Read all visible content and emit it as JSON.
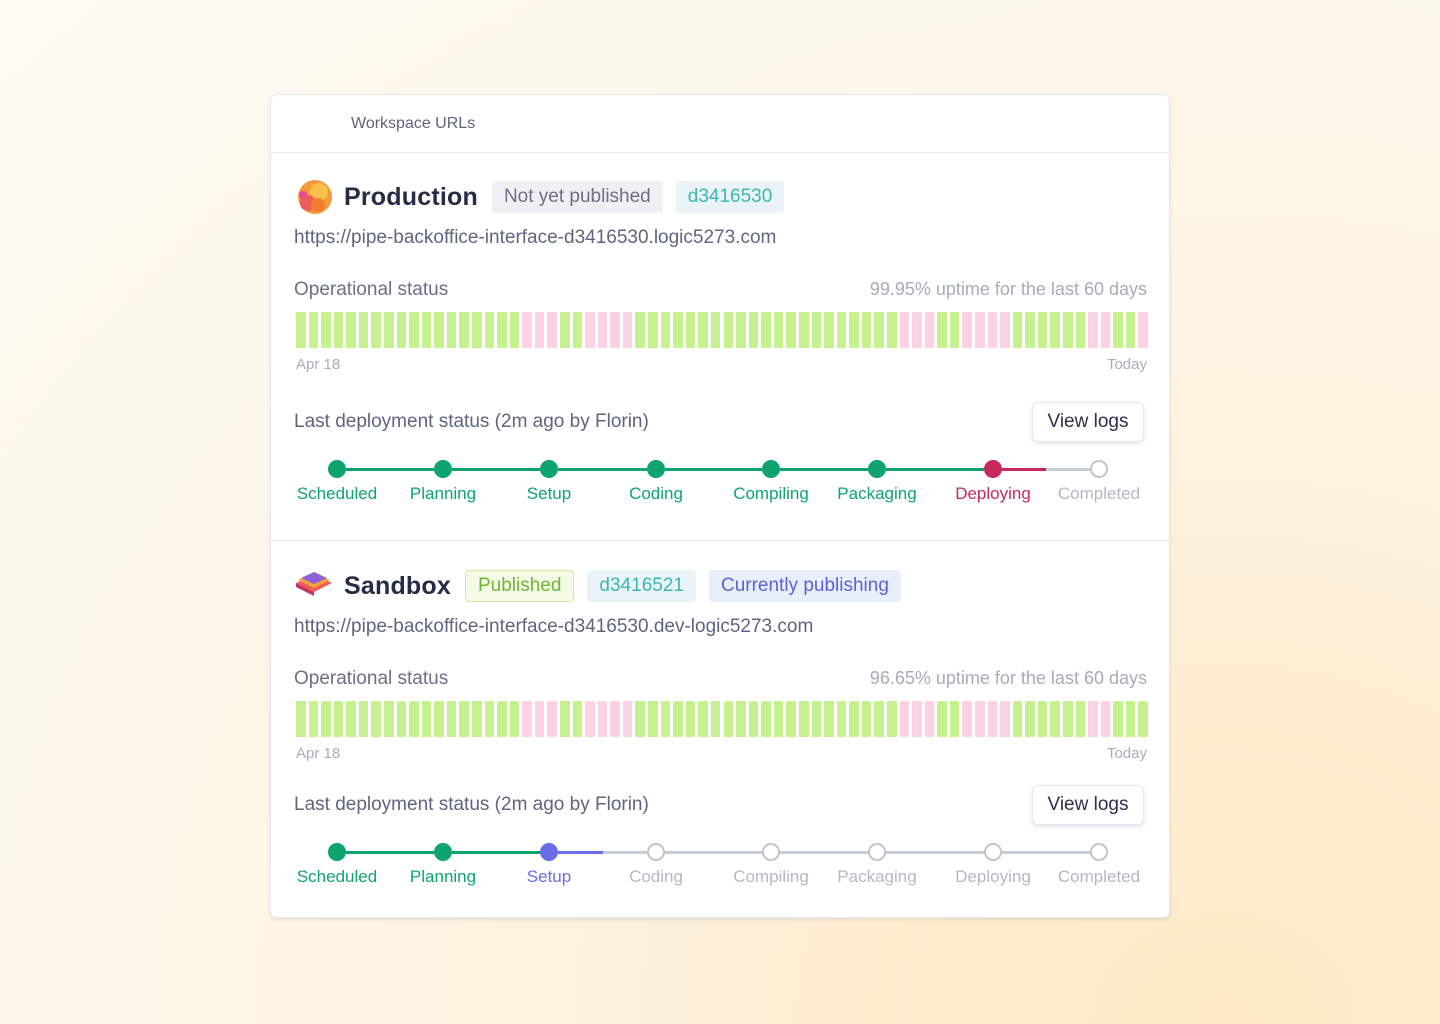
{
  "header": {
    "title": "Workspace URLs"
  },
  "colors": {
    "bar_ok": "#c7f08e",
    "bar_warn": "#fbd2e3",
    "step_done": "#0ea46d",
    "step_active_prod": "#c7285b",
    "step_active_sand": "#6d6ce8",
    "step_pending": "#b9bdcb"
  },
  "environments": [
    {
      "name": "Production",
      "icon": "production-logo-icon",
      "badges": [
        {
          "text": "Not yet published",
          "style": "gray"
        },
        {
          "text": "d3416530",
          "style": "teal"
        }
      ],
      "url": "https://pipe-backoffice-interface-d3416530.logic5273.com",
      "operational_label": "Operational status",
      "uptime_text": "99.95% uptime for the last 60 days",
      "axis_start": "Apr 18",
      "axis_end": "Today",
      "uptime_days": [
        "ok",
        "ok",
        "ok",
        "ok",
        "ok",
        "ok",
        "ok",
        "ok",
        "ok",
        "ok",
        "ok",
        "ok",
        "ok",
        "ok",
        "ok",
        "ok",
        "ok",
        "ok",
        "warn",
        "warn",
        "warn",
        "ok",
        "ok",
        "warn",
        "warn",
        "warn",
        "warn",
        "ok",
        "ok",
        "ok",
        "ok",
        "ok",
        "ok",
        "ok",
        "ok",
        "ok",
        "ok",
        "ok",
        "ok",
        "ok",
        "ok",
        "ok",
        "ok",
        "ok",
        "ok",
        "ok",
        "ok",
        "ok",
        "warn",
        "warn",
        "warn",
        "ok",
        "ok",
        "warn",
        "warn",
        "warn",
        "warn",
        "ok",
        "ok",
        "ok",
        "ok",
        "ok",
        "ok",
        "warn",
        "warn",
        "ok",
        "ok",
        "warn"
      ],
      "deployment_label": "Last deployment status (2m ago by Florin)",
      "view_logs": "View logs",
      "steps": [
        {
          "label": "Scheduled",
          "state": "done"
        },
        {
          "label": "Planning",
          "state": "done"
        },
        {
          "label": "Setup",
          "state": "done"
        },
        {
          "label": "Coding",
          "state": "done"
        },
        {
          "label": "Compiling",
          "state": "done"
        },
        {
          "label": "Packaging",
          "state": "done"
        },
        {
          "label": "Deploying",
          "state": "active"
        },
        {
          "label": "Completed",
          "state": "pending"
        }
      ]
    },
    {
      "name": "Sandbox",
      "icon": "sandbox-layers-icon",
      "badges": [
        {
          "text": "Published",
          "style": "green"
        },
        {
          "text": "d3416521",
          "style": "teal"
        },
        {
          "text": "Currently publishing",
          "style": "purple"
        }
      ],
      "url": "https://pipe-backoffice-interface-d3416530.dev-logic5273.com",
      "operational_label": "Operational status",
      "uptime_text": "96.65% uptime for the last 60 days",
      "axis_start": "Apr 18",
      "axis_end": "Today",
      "uptime_days": [
        "ok",
        "ok",
        "ok",
        "ok",
        "ok",
        "ok",
        "ok",
        "ok",
        "ok",
        "ok",
        "ok",
        "ok",
        "ok",
        "ok",
        "ok",
        "ok",
        "ok",
        "ok",
        "warn",
        "warn",
        "warn",
        "ok",
        "ok",
        "warn",
        "warn",
        "warn",
        "warn",
        "ok",
        "ok",
        "ok",
        "ok",
        "ok",
        "ok",
        "ok",
        "ok",
        "ok",
        "ok",
        "ok",
        "ok",
        "ok",
        "ok",
        "ok",
        "ok",
        "ok",
        "ok",
        "ok",
        "ok",
        "ok",
        "warn",
        "warn",
        "warn",
        "ok",
        "ok",
        "warn",
        "warn",
        "warn",
        "warn",
        "ok",
        "ok",
        "ok",
        "ok",
        "ok",
        "ok",
        "warn",
        "warn",
        "ok",
        "ok",
        "ok"
      ],
      "deployment_label": "Last deployment status (2m ago by Florin)",
      "view_logs": "View logs",
      "steps": [
        {
          "label": "Scheduled",
          "state": "done"
        },
        {
          "label": "Planning",
          "state": "done"
        },
        {
          "label": "Setup",
          "state": "active"
        },
        {
          "label": "Coding",
          "state": "pending"
        },
        {
          "label": "Compiling",
          "state": "pending"
        },
        {
          "label": "Packaging",
          "state": "pending"
        },
        {
          "label": "Deploying",
          "state": "pending"
        },
        {
          "label": "Completed",
          "state": "pending"
        }
      ]
    }
  ]
}
